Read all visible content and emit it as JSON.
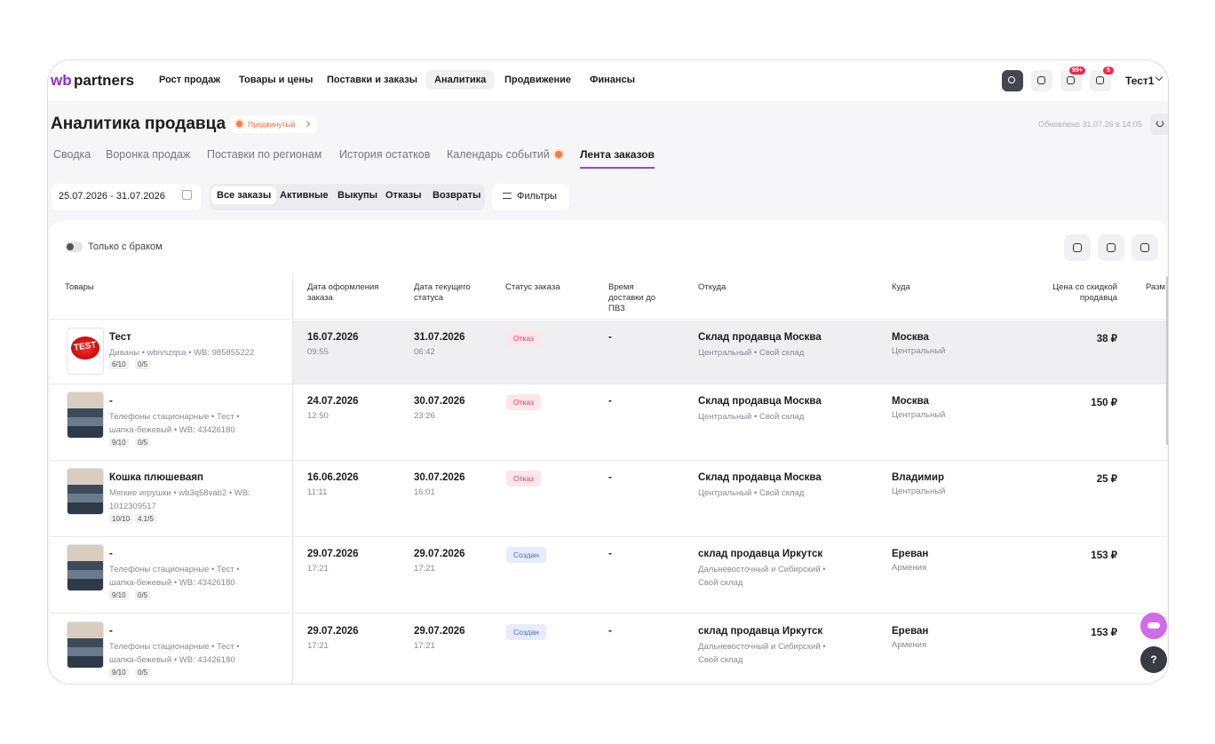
{
  "nav": {
    "logo_wb": "wb",
    "logo_partners": "partners",
    "items": [
      "Рост продаж",
      "Товары и цены",
      "Поставки и заказы",
      "Аналитика",
      "Продвижение",
      "Финансы"
    ],
    "notifications_badge": "99+",
    "messages_badge": "5",
    "user": "Тест1"
  },
  "header": {
    "title": "Аналитика продавца",
    "plan_badge": "Продвинутый",
    "updated": "Обновлено 31.07.26 в 14:05"
  },
  "tabs": [
    "Сводка",
    "Воронка продаж",
    "Поставки по регионам",
    "История остатков",
    "Календарь событий",
    "Лента заказов"
  ],
  "filters": {
    "date_range": "25.07.2026 - 31.07.2026",
    "order_types": [
      "Все заказы",
      "Активные",
      "Выкупы",
      "Отказы",
      "Возвраты"
    ],
    "filters_button": "Фильтры",
    "defect_toggle": "Только с браком"
  },
  "table": {
    "columns": [
      "Товары",
      "Дата оформления заказа",
      "Дата текущего статуса",
      "Статус заказа",
      "Время доставки до ПВЗ",
      "Откуда",
      "Куда",
      "Цена со скидкой продавца",
      "Разм"
    ],
    "rows": [
      {
        "thumb_text": "TEST",
        "name": "Тест",
        "meta": "Диваны • wbivszqsa • WB: 985855222",
        "rating": "6/10",
        "stars": "0/5",
        "order_date": "16.07.2026",
        "order_time": "09:55",
        "status_date": "31.07.2026",
        "status_time": "06:42",
        "status": "Отказ",
        "delivery": "-",
        "from": "Склад продавца Москва",
        "from_region": "Центральный • Свой склад",
        "to": "Москва",
        "to_region": "Центральный",
        "price": "38 ₽"
      },
      {
        "name": "-",
        "meta": "Телефоны стационарные • Тест • шапка-бежевый • WB: 43426180",
        "rating": "9/10",
        "stars": "0/5",
        "order_date": "24.07.2026",
        "order_time": "12:50",
        "status_date": "30.07.2026",
        "status_time": "23:26",
        "status": "Отказ",
        "delivery": "-",
        "from": "Склад продавца Москва",
        "from_region": "Центральный • Свой склад",
        "to": "Москва",
        "to_region": "Центральный",
        "price": "150 ₽"
      },
      {
        "name": "Кошка плюшеваяп",
        "meta": "Мягкие игрушки • wb3q58vab2 • WB: 1012309517",
        "rating": "10/10",
        "stars": "4.1/5",
        "order_date": "16.06.2026",
        "order_time": "11:11",
        "status_date": "30.07.2026",
        "status_time": "16:01",
        "status": "Отказ",
        "delivery": "-",
        "from": "Склад продавца Москва",
        "from_region": "Центральный • Свой склад",
        "to": "Владимир",
        "to_region": "Центральный",
        "price": "25 ₽"
      },
      {
        "name": "-",
        "meta": "Телефоны стационарные • Тест • шапка-бежевый • WB: 43426180",
        "rating": "9/10",
        "stars": "0/5",
        "order_date": "29.07.2026",
        "order_time": "17:21",
        "status_date": "29.07.2026",
        "status_time": "17:21",
        "status": "Создан",
        "delivery": "-",
        "from": "склад продавца Иркутск",
        "from_region": "Дальневосточный и Сибирский • Свой склад",
        "to": "Ереван",
        "to_region": "Армения",
        "price": "153 ₽"
      },
      {
        "name": "-",
        "meta": "Телефоны стационарные • Тест • шапка-бежевый • WB: 43426180",
        "rating": "9/10",
        "stars": "0/5",
        "order_date": "29.07.2026",
        "order_time": "17:21",
        "status_date": "29.07.2026",
        "status_time": "17:21",
        "status": "Создан",
        "delivery": "-",
        "from": "склад продавца Иркутск",
        "from_region": "Дальневосточный и Сибирский • Свой склад",
        "to": "Ереван",
        "to_region": "Армения",
        "price": "153 ₽"
      }
    ]
  },
  "help_button": "?"
}
